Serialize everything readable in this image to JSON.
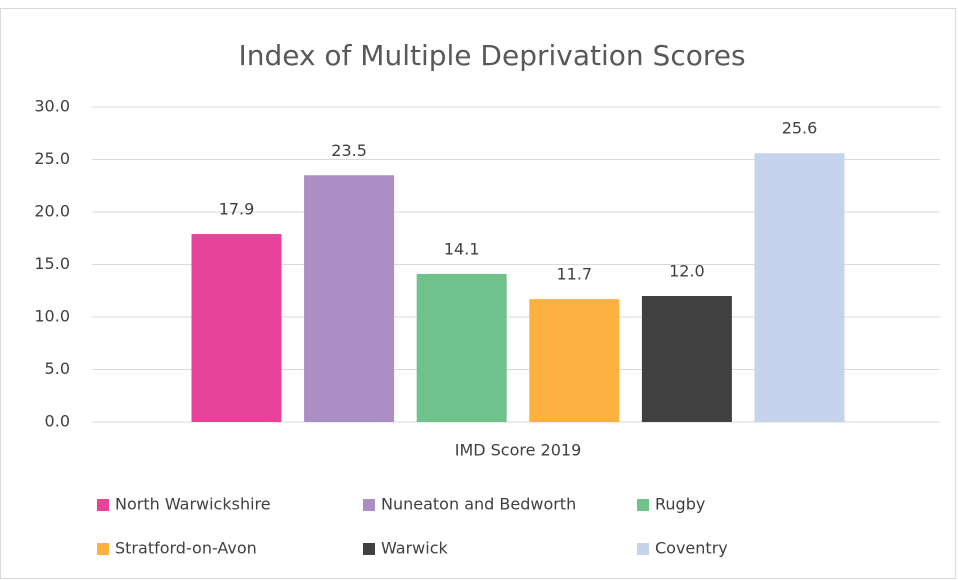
{
  "chart_data": {
    "type": "bar",
    "title": "Index of Multiple  Deprivation Scores",
    "categories": [
      "IMD Score 2019"
    ],
    "series": [
      {
        "name": "North Warwickshire",
        "color": "#e8439a",
        "values": [
          17.9
        ],
        "value_labels": [
          "17.9"
        ]
      },
      {
        "name": "Nuneaton and Bedworth",
        "color": "#ab8ec4",
        "values": [
          23.5
        ],
        "value_labels": [
          "23.5"
        ]
      },
      {
        "name": "Rugby",
        "color": "#6fc28b",
        "values": [
          14.1
        ],
        "value_labels": [
          "14.1"
        ]
      },
      {
        "name": "Stratford-on-Avon",
        "color": "#fbb040",
        "values": [
          11.7
        ],
        "value_labels": [
          "11.7"
        ]
      },
      {
        "name": "Warwick",
        "color": "#404040",
        "values": [
          12.0
        ],
        "value_labels": [
          "12.0"
        ]
      },
      {
        "name": "Coventry",
        "color": "#c5d3ec",
        "values": [
          25.6
        ],
        "value_labels": [
          "25.6"
        ]
      }
    ],
    "ylim": [
      0,
      30
    ],
    "yticks": [
      {
        "value": 0,
        "label": "0.0"
      },
      {
        "value": 5,
        "label": "5.0"
      },
      {
        "value": 10,
        "label": "10.0"
      },
      {
        "value": 15,
        "label": "15.0"
      },
      {
        "value": 20,
        "label": "20.0"
      },
      {
        "value": 25,
        "label": "25.0"
      },
      {
        "value": 30,
        "label": "30.0"
      }
    ],
    "grid": true,
    "legend": "bottom"
  }
}
